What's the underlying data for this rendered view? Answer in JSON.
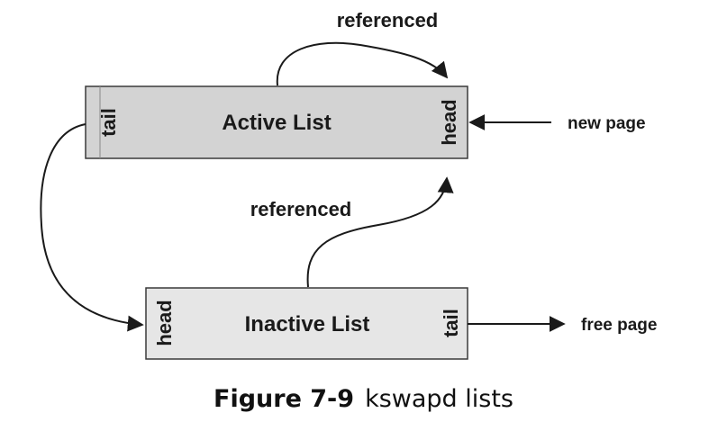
{
  "diagram": {
    "active_list": {
      "title": "Active List",
      "tail_label": "tail",
      "head_label": "head",
      "fill": "#d3d3d3"
    },
    "inactive_list": {
      "title": "Inactive List",
      "head_label": "head",
      "tail_label": "tail",
      "fill": "#e6e6e6"
    },
    "edges": {
      "referenced_top": "referenced",
      "referenced_middle": "referenced",
      "new_page": "new page",
      "free_page": "free page"
    },
    "colors": {
      "stroke": "#1a1a1a",
      "box_border": "#3a3a3a"
    }
  },
  "caption": {
    "figure_number": "Figure 7-9",
    "text": "kswapd lists"
  }
}
